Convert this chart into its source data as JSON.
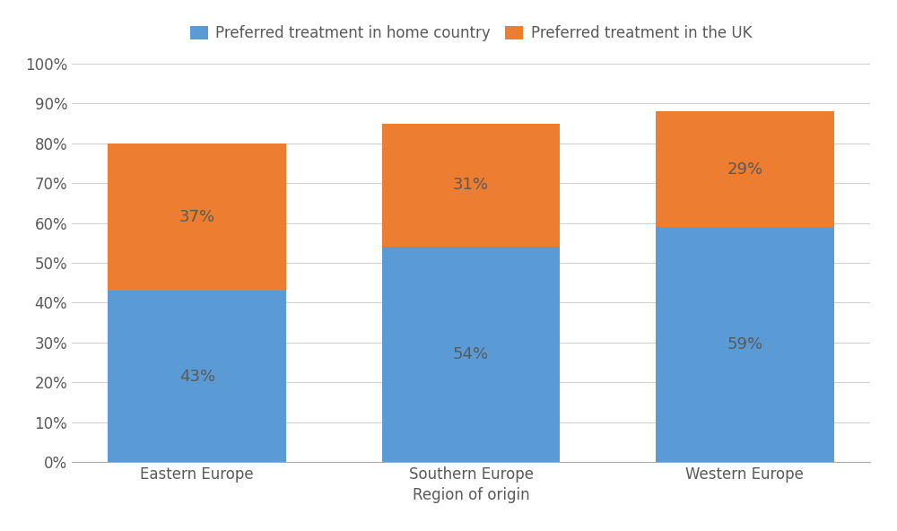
{
  "categories": [
    "Eastern Europe",
    "Southern Europe",
    "Western Europe"
  ],
  "home_country_values": [
    43,
    54,
    59
  ],
  "uk_values": [
    37,
    31,
    29
  ],
  "home_country_color": "#5B9BD5",
  "uk_color": "#ED7D31",
  "legend_home": "Preferred treatment in home country",
  "legend_uk": "Preferred treatment in the UK",
  "xlabel": "Region of origin",
  "ylim": [
    0,
    100
  ],
  "yticks": [
    0,
    10,
    20,
    30,
    40,
    50,
    60,
    70,
    80,
    90,
    100
  ],
  "ytick_labels": [
    "0%",
    "10%",
    "20%",
    "30%",
    "40%",
    "50%",
    "60%",
    "70%",
    "80%",
    "90%",
    "100%"
  ],
  "background_color": "#ffffff",
  "grid_color": "#d0d0d0",
  "bar_width": 0.65,
  "label_fontsize": 13,
  "tick_fontsize": 12,
  "legend_fontsize": 12,
  "xlabel_fontsize": 12,
  "label_color": "#595959"
}
